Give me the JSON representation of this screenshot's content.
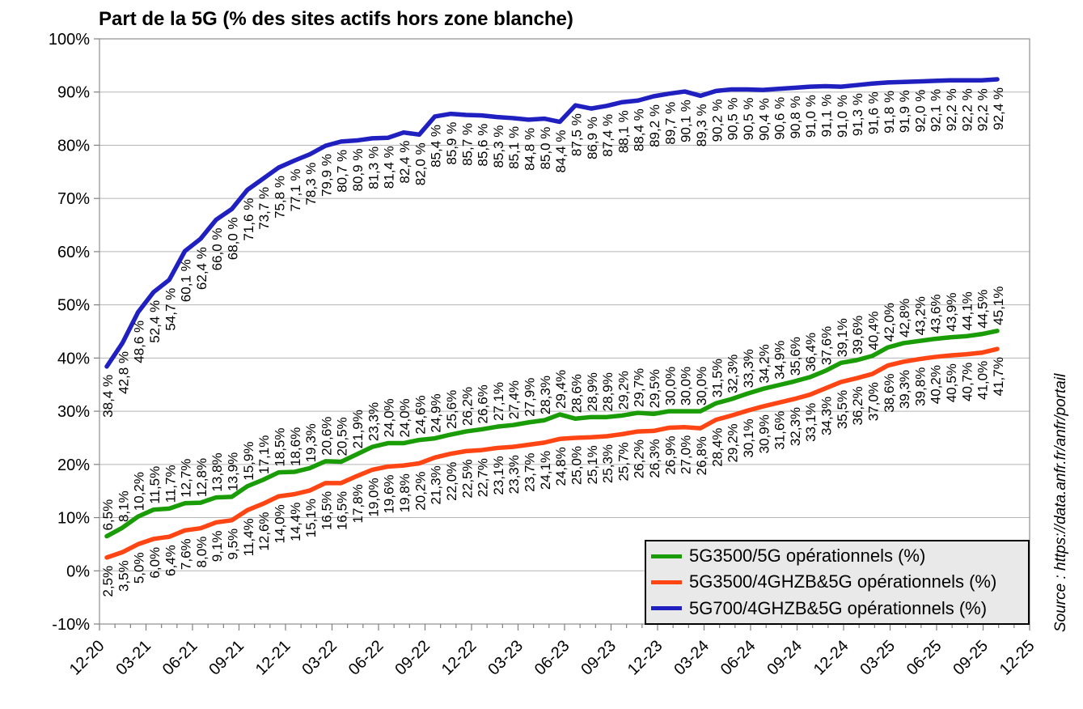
{
  "title": "Part de la 5G (% des sites actifs hors zone blanche)",
  "source_note": "Source : https://data.anfr.fr/anfr/portail",
  "chart_data": {
    "type": "line",
    "title": "Part de la 5G (% des sites actifs hors zone blanche)",
    "x_tick_labels": [
      "12-20",
      "03-21",
      "06-21",
      "09-21",
      "12-21",
      "03-22",
      "06-22",
      "09-22",
      "12-22",
      "03-23",
      "06-23",
      "09-23",
      "12-23",
      "03-24",
      "06-24",
      "09-24",
      "12-24",
      "03-25",
      "06-25",
      "09-25",
      "12-25"
    ],
    "x_months_total": 60,
    "x_minor_tick_every_months": 1,
    "x_major_tick_every_months": 3,
    "y_axis": {
      "min": -10,
      "max": 100,
      "step": 10,
      "tick_labels": [
        "100%",
        "90%",
        "80%",
        "70%",
        "60%",
        "50%",
        "40%",
        "30%",
        "20%",
        "10%",
        "0%",
        "-10%"
      ]
    },
    "grid": "horizontal",
    "legend_position": "bottom-right",
    "series": [
      {
        "name": "5G3500/5G opérationnels (%)",
        "color": "#1a9c06",
        "label_suffix": "%",
        "label_position": "above",
        "values": [
          6.5,
          8.1,
          10.2,
          11.5,
          11.7,
          12.7,
          12.8,
          13.8,
          13.9,
          15.9,
          17.1,
          18.5,
          18.6,
          19.3,
          20.6,
          20.5,
          21.9,
          23.3,
          24.0,
          24.0,
          24.6,
          24.9,
          25.6,
          26.2,
          26.6,
          27.1,
          27.4,
          27.9,
          28.3,
          29.4,
          28.6,
          28.9,
          28.9,
          29.2,
          29.7,
          29.5,
          30.0,
          30.0,
          30.0,
          31.5,
          32.3,
          33.3,
          34.2,
          34.9,
          35.6,
          36.4,
          37.6,
          39.1,
          39.6,
          40.4,
          42.0,
          42.8,
          43.2,
          43.6,
          43.9,
          44.1,
          44.5,
          45.1
        ]
      },
      {
        "name": "5G3500/4GHZB&5G opérationnels (%)",
        "color": "#ff4513",
        "label_suffix": "%",
        "label_position": "below",
        "values": [
          2.5,
          3.5,
          5.0,
          6.0,
          6.4,
          7.6,
          8.0,
          9.1,
          9.5,
          11.4,
          12.6,
          14.0,
          14.4,
          15.1,
          16.5,
          16.5,
          17.8,
          19.0,
          19.6,
          19.8,
          20.2,
          21.3,
          22.0,
          22.5,
          22.7,
          23.1,
          23.3,
          23.7,
          24.1,
          24.8,
          25.0,
          25.1,
          25.3,
          25.7,
          26.2,
          26.3,
          26.9,
          27.0,
          26.8,
          28.4,
          29.2,
          30.1,
          30.9,
          31.6,
          32.3,
          33.1,
          34.3,
          35.5,
          36.2,
          37.0,
          38.6,
          39.3,
          39.8,
          40.2,
          40.5,
          40.7,
          41.0,
          41.7
        ]
      },
      {
        "name": "5G700/4GHZB&5G opérationnels (%)",
        "color": "#2020c0",
        "label_suffix": " %",
        "label_position": "below",
        "values": [
          38.4,
          42.8,
          48.6,
          52.4,
          54.7,
          60.1,
          62.4,
          66.0,
          68.0,
          71.6,
          73.7,
          75.8,
          77.1,
          78.3,
          79.9,
          80.7,
          80.9,
          81.3,
          81.4,
          82.4,
          82.0,
          85.4,
          85.9,
          85.7,
          85.6,
          85.3,
          85.1,
          84.8,
          85.0,
          84.4,
          87.5,
          86.9,
          87.4,
          88.1,
          88.4,
          89.2,
          89.7,
          90.1,
          89.3,
          90.2,
          90.5,
          90.5,
          90.4,
          90.6,
          90.8,
          91.0,
          91.1,
          91.0,
          91.3,
          91.6,
          91.8,
          91.9,
          92.0,
          92.1,
          92.2,
          92.2,
          92.2,
          92.4
        ]
      }
    ]
  }
}
